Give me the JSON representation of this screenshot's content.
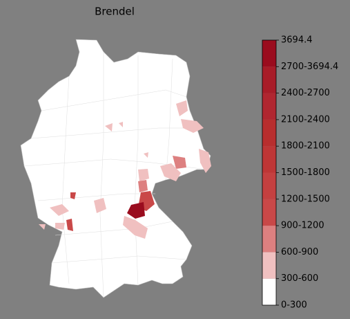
{
  "title": "Brendel",
  "colorbar": {
    "labels": [
      "0-300",
      "300-600",
      "600-900",
      "900-1200",
      "1200-1500",
      "1500-1800",
      "1800-2100",
      "2100-2400",
      "2400-2700",
      "2700-3694.4",
      "3694.4"
    ],
    "colors": [
      "#ffffff",
      "#f0c0c0",
      "#dd8080",
      "#c94848",
      "#c44040",
      "#be3636",
      "#b82e2e",
      "#b02630",
      "#a81c28",
      "#9a0c1e"
    ]
  }
}
